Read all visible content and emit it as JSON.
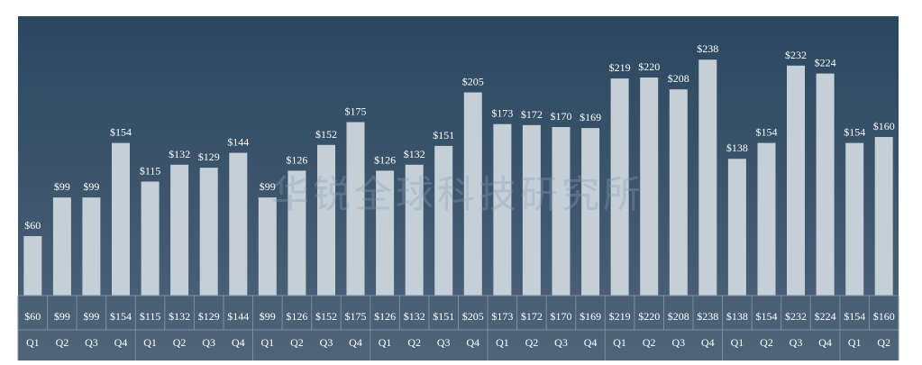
{
  "chart_data": {
    "type": "bar",
    "title": "",
    "xlabel": "",
    "ylabel": "",
    "ylim": [
      0,
      250
    ],
    "grid": false,
    "legend": "none",
    "categories": [
      "Q1",
      "Q2",
      "Q3",
      "Q4",
      "Q1",
      "Q2",
      "Q3",
      "Q4",
      "Q1",
      "Q2",
      "Q3",
      "Q4",
      "Q1",
      "Q2",
      "Q3",
      "Q4",
      "Q1",
      "Q2",
      "Q3",
      "Q4",
      "Q1",
      "Q2",
      "Q3",
      "Q4",
      "Q1",
      "Q2",
      "Q3",
      "Q4",
      "Q1",
      "Q2"
    ],
    "values": [
      60,
      99,
      99,
      154,
      115,
      132,
      129,
      144,
      99,
      126,
      152,
      175,
      126,
      132,
      151,
      205,
      173,
      172,
      170,
      169,
      219,
      220,
      208,
      238,
      138,
      154,
      232,
      224,
      154,
      160
    ],
    "value_labels": [
      "$60",
      "$99",
      "$99",
      "$154",
      "$115",
      "$132",
      "$129",
      "$144",
      "$99",
      "$126",
      "$152",
      "$175",
      "$126",
      "$132",
      "$151",
      "$205",
      "$173",
      "$172",
      "$170",
      "$169",
      "$219",
      "$220",
      "$208",
      "$238",
      "$138",
      "$154",
      "$232",
      "$224",
      "$154",
      "$160"
    ],
    "colors": {
      "background_top": "#2b4760",
      "background_bottom": "#4e6479",
      "bar": "#c5cfd8",
      "label": "#ffffff",
      "table_border": "#7d8fa1"
    }
  },
  "watermark": "华锐全球科技研究所"
}
